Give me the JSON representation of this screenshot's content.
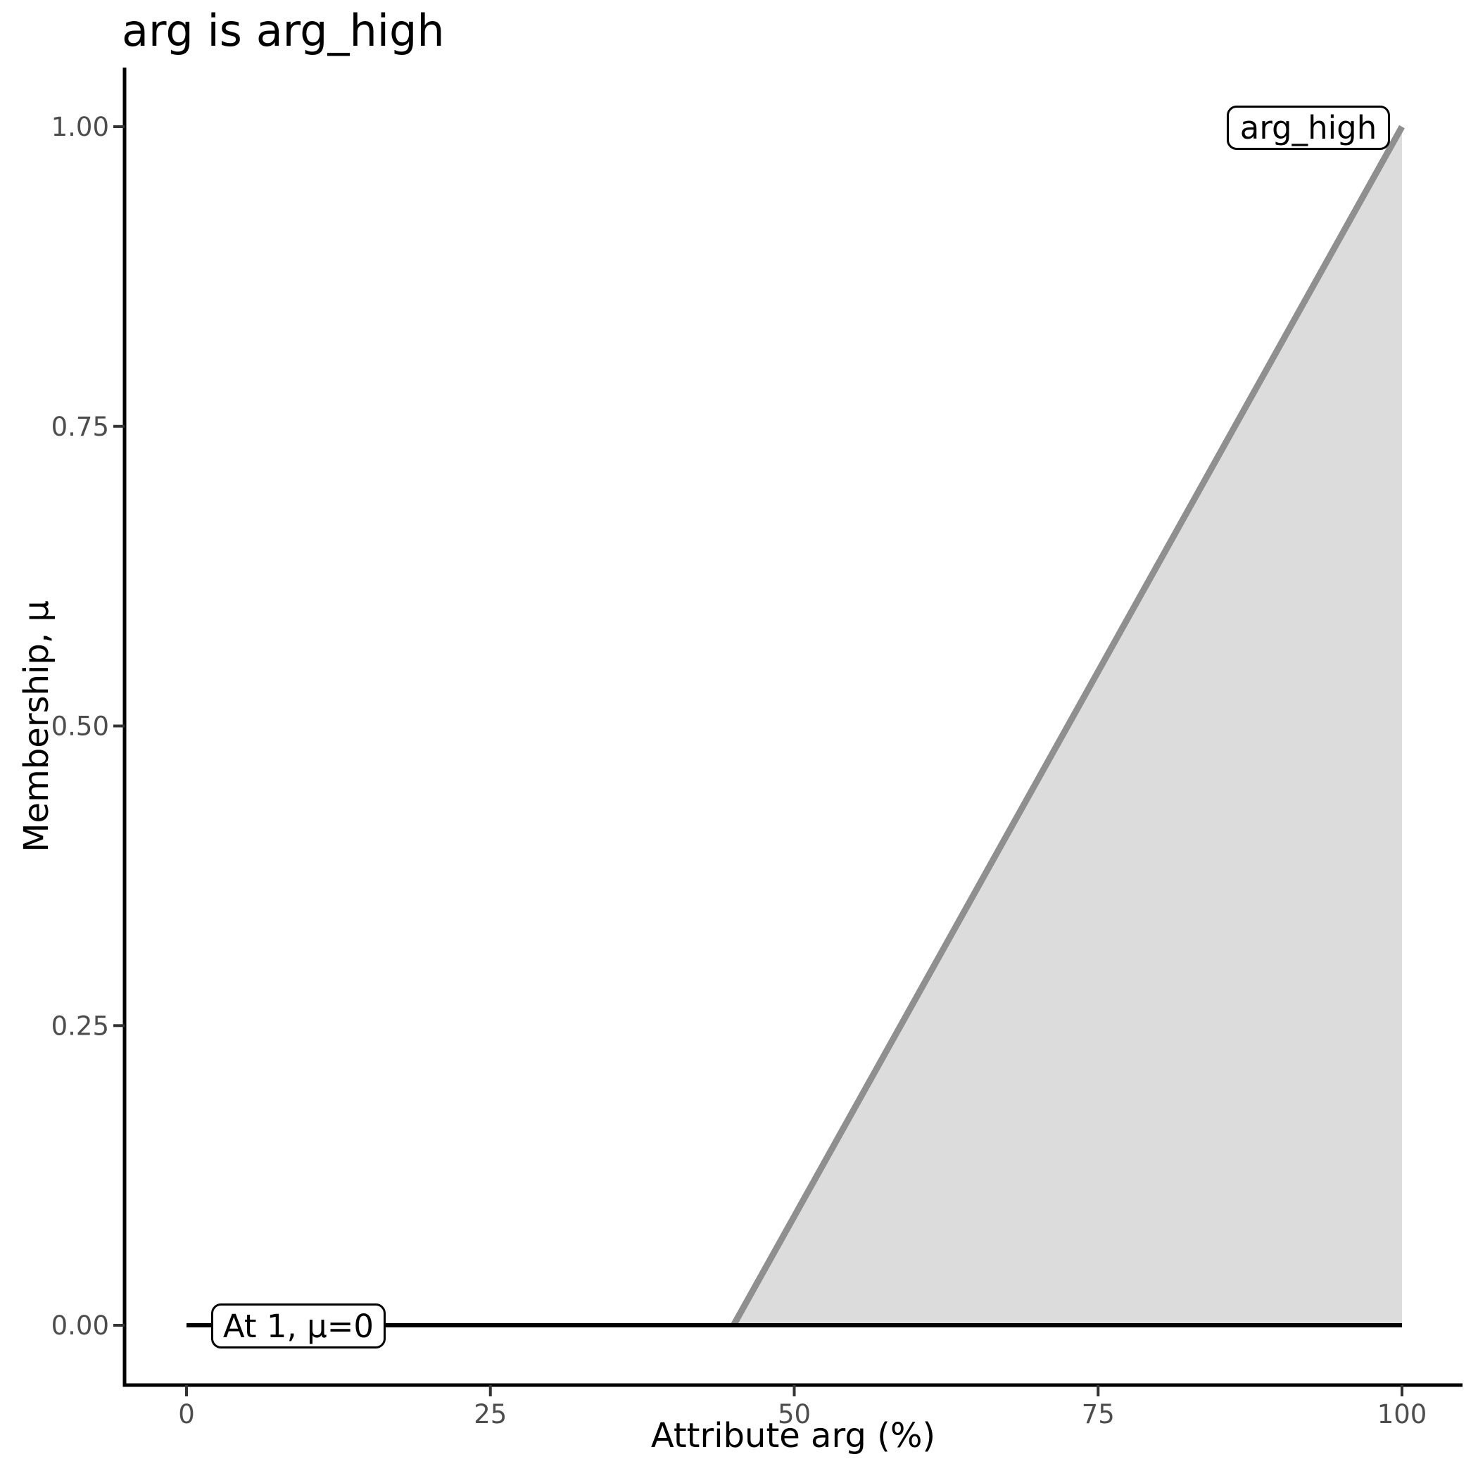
{
  "chart_data": {
    "type": "area",
    "title": "arg is arg_high",
    "xlabel": "Attribute arg (%)",
    "ylabel": "Membership, µ",
    "xlim": [
      0,
      100
    ],
    "ylim": [
      0,
      1
    ],
    "x_ticks": [
      "0",
      "25",
      "50",
      "75",
      "100"
    ],
    "x_tick_values": [
      0,
      25,
      50,
      75,
      100
    ],
    "y_ticks": [
      "0.00",
      "0.25",
      "0.50",
      "0.75",
      "1.00"
    ],
    "y_tick_values": [
      0,
      0.25,
      0.5,
      0.75,
      1
    ],
    "grid": false,
    "legend": "none",
    "series": [
      {
        "name": "arg_high membership function",
        "points": [
          [
            45,
            0
          ],
          [
            100,
            1
          ]
        ],
        "fill_under": true,
        "line_color": "#8f8f8f",
        "fill_color": "#dcdcdc",
        "line_width": 9
      },
      {
        "name": "evaluated membership level (mu = 0 at arg = 1)",
        "points": [
          [
            0,
            0
          ],
          [
            100,
            0
          ]
        ],
        "fill_under": false,
        "line_color": "#000000",
        "fill_color": null,
        "line_width": 6
      }
    ],
    "annotations": [
      {
        "label": "At 1, µ=0",
        "anchor_x": 1,
        "anchor_y": 0
      },
      {
        "label": "arg_high",
        "anchor_x": 100,
        "anchor_y": 1
      }
    ]
  },
  "colors": {
    "background": "#ffffff",
    "axis_line": "#000000",
    "tick_mark": "#333333",
    "tick_label": "#4d4d4d",
    "title_text": "#000000",
    "membership_line": "#8f8f8f",
    "membership_fill": "#dcdcdc",
    "annotation_border": "#000000",
    "annotation_fill": "#ffffff"
  }
}
